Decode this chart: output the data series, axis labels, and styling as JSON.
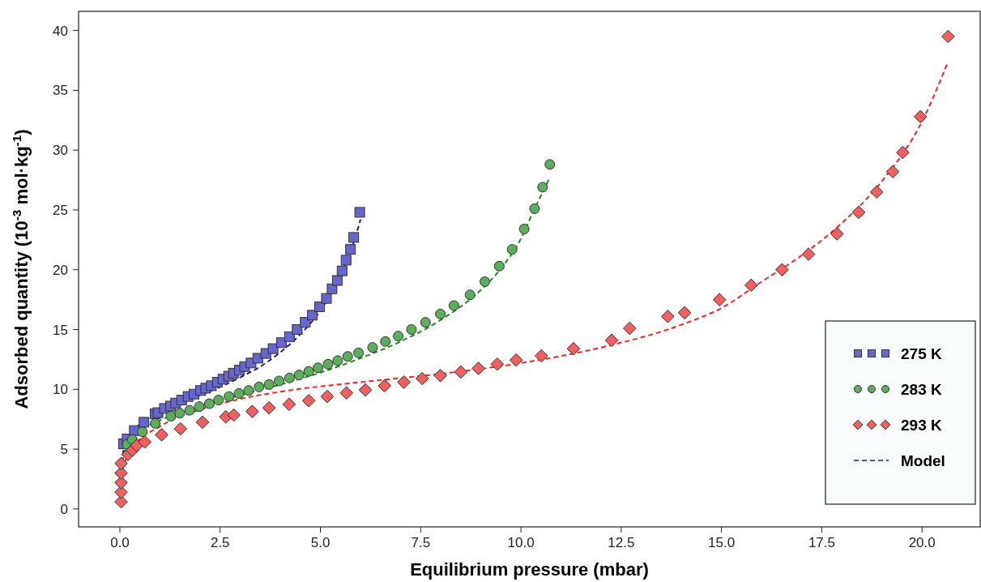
{
  "chart_data": {
    "type": "scatter",
    "xlabel": "Equilibrium pressure (mbar)",
    "ylabel": "Adsorbed quantity (10$^{-3}$ mol·kg$^{-1}$)",
    "xlim": [
      -1.03,
      21.45
    ],
    "ylim": [
      -1.5,
      41.6
    ],
    "xticks": [
      {
        "value": 0,
        "label": "0.0"
      },
      {
        "value": 2.5,
        "label": "2.5"
      },
      {
        "value": 5,
        "label": "5.0"
      },
      {
        "value": 7.5,
        "label": "7.5"
      },
      {
        "value": 10,
        "label": "10.0"
      },
      {
        "value": 12.5,
        "label": "12.5"
      },
      {
        "value": 15,
        "label": "15.0"
      },
      {
        "value": 17.5,
        "label": "17.5"
      },
      {
        "value": 20,
        "label": "20.0"
      }
    ],
    "yticks": [
      0,
      5,
      10,
      15,
      20,
      25,
      30,
      35,
      40
    ],
    "grid": false,
    "legend": "bottom right",
    "series": [
      {
        "name": "275 K",
        "marker": "square",
        "color": "#6666cc",
        "x": [
          0.09,
          0.18,
          0.36,
          0.6,
          0.88,
          0.95,
          1.11,
          1.26,
          1.39,
          1.54,
          1.7,
          1.85,
          2.01,
          2.14,
          2.28,
          2.43,
          2.57,
          2.71,
          2.83,
          2.98,
          3.11,
          3.27,
          3.44,
          3.64,
          3.82,
          4.03,
          4.23,
          4.42,
          4.62,
          4.8,
          4.98,
          5.15,
          5.29,
          5.42,
          5.54,
          5.64,
          5.75,
          5.83,
          5.98
        ],
        "values": [
          5.45,
          5.85,
          6.55,
          7.25,
          7.95,
          8.05,
          8.4,
          8.6,
          8.85,
          9.1,
          9.4,
          9.6,
          9.9,
          10.1,
          10.3,
          10.6,
          10.85,
          11.1,
          11.35,
          11.6,
          11.9,
          12.2,
          12.6,
          13,
          13.4,
          13.9,
          14.4,
          15,
          15.6,
          16.2,
          16.9,
          17.6,
          18.4,
          19.1,
          19.9,
          20.8,
          21.7,
          22.7,
          24.8
        ]
      },
      {
        "name": "283 K",
        "marker": "circle",
        "color": "#5cad5c",
        "x": [
          0.18,
          0.31,
          0.56,
          0.88,
          1.27,
          1.49,
          1.74,
          1.98,
          2.23,
          2.46,
          2.72,
          2.97,
          3.21,
          3.47,
          3.72,
          3.97,
          4.23,
          4.47,
          4.71,
          4.94,
          5.19,
          5.43,
          5.68,
          5.95,
          6.3,
          6.62,
          6.94,
          7.27,
          7.62,
          7.99,
          8.33,
          8.73,
          9.1,
          9.46,
          9.78,
          10.08,
          10.34,
          10.54,
          10.72
        ],
        "values": [
          5.4,
          5.8,
          6.45,
          7.15,
          7.75,
          8,
          8.25,
          8.55,
          8.8,
          9.1,
          9.4,
          9.65,
          9.9,
          10.2,
          10.4,
          10.7,
          10.95,
          11.2,
          11.5,
          11.8,
          12.1,
          12.4,
          12.75,
          13.05,
          13.5,
          14,
          14.45,
          15,
          15.6,
          16.3,
          17,
          17.9,
          19,
          20.3,
          21.7,
          23.4,
          25.1,
          26.9,
          28.8
        ]
      },
      {
        "name": "293 K",
        "marker": "diamond",
        "color": "#f06060",
        "x": [
          0.03,
          0.03,
          0.03,
          0.03,
          0.03,
          0.2,
          0.31,
          0.42,
          0.62,
          1.04,
          1.51,
          2.06,
          2.64,
          2.84,
          3.3,
          3.72,
          4.22,
          4.71,
          5.17,
          5.65,
          6.12,
          6.6,
          7.08,
          7.54,
          7.99,
          8.5,
          8.94,
          9.41,
          9.88,
          10.51,
          11.31,
          12.26,
          12.71,
          13.66,
          14.08,
          14.95,
          15.74,
          16.51,
          17.17,
          17.88,
          18.42,
          18.87,
          19.27,
          19.52,
          19.96,
          20.65
        ],
        "values": [
          0.6,
          1.4,
          2.2,
          3,
          3.8,
          4.55,
          4.9,
          5.3,
          5.6,
          6.2,
          6.7,
          7.25,
          7.7,
          7.85,
          8.15,
          8.45,
          8.75,
          9.05,
          9.4,
          9.7,
          9.95,
          10.3,
          10.6,
          10.9,
          11.15,
          11.45,
          11.75,
          12.1,
          12.45,
          12.8,
          13.4,
          14.1,
          15.1,
          16.1,
          16.4,
          17.5,
          18.7,
          20,
          21.3,
          23,
          24.8,
          26.5,
          28.2,
          29.8,
          32.8,
          39.5
        ]
      },
      {
        "name": "Model",
        "type": "line",
        "line_style": "dashed",
        "marker": "none",
        "color": "#1a1a99",
        "x": [
          0,
          0.02,
          0.1,
          0.3,
          0.6,
          1,
          1.5,
          2,
          2.5,
          3,
          3.5,
          4,
          4.5,
          5,
          5.3,
          5.6,
          5.8,
          6
        ],
        "values": [
          0.5,
          3,
          5,
          6.4,
          7.3,
          8,
          8.8,
          9.5,
          10.2,
          11,
          11.9,
          13.1,
          14.6,
          16.6,
          18.2,
          20.3,
          22,
          24.2
        ]
      },
      {
        "type": "line",
        "line_style": "dashed",
        "marker": "none",
        "color": "#1a8c1a",
        "x": [
          0,
          0.03,
          0.15,
          0.4,
          1,
          2,
          3,
          4,
          5,
          6,
          7,
          8,
          9,
          9.5,
          10,
          10.3,
          10.72
        ],
        "values": [
          0.5,
          3,
          5,
          6.2,
          7.4,
          8.6,
          9.5,
          10.4,
          11.4,
          12.6,
          14,
          15.8,
          18.3,
          20.1,
          22.6,
          24.8,
          27.7
        ]
      },
      {
        "type": "line",
        "line_style": "dashed",
        "marker": "none",
        "color": "#ff2020",
        "x": [
          0,
          0.05,
          0.3,
          1,
          2,
          3,
          4,
          6,
          8,
          10,
          12,
          14,
          15,
          16,
          17,
          18,
          19,
          20,
          20.65
        ],
        "values": [
          0.5,
          3,
          5,
          6.9,
          8.3,
          9.2,
          9.8,
          10.6,
          11.3,
          12.2,
          13.5,
          15.4,
          16.8,
          19,
          21.2,
          23.9,
          27.4,
          32.4,
          37.4
        ]
      }
    ]
  }
}
